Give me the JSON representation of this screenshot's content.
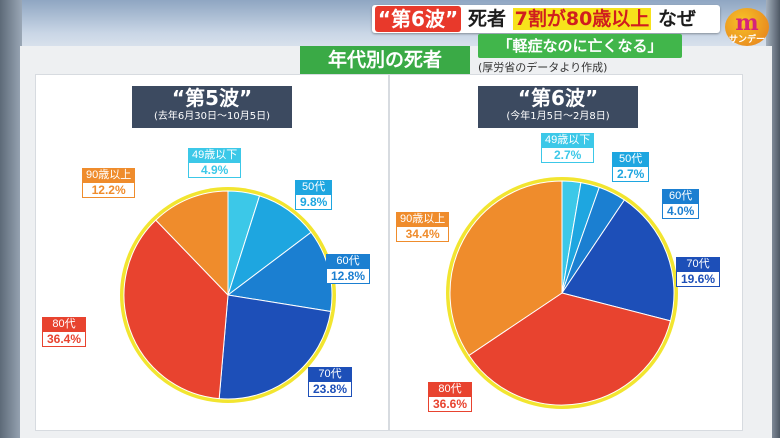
{
  "header": {
    "tag": "“第6波”",
    "headline_pre": "死者",
    "headline_hl": "7割が80歳以上",
    "headline_post": "なぜ",
    "subheadline": "「軽症なのに亡くなる」",
    "logo_mark": "m",
    "logo_text": "サンデー",
    "section_title": "年代別の死者",
    "source": "(厚労省のデータより作成)"
  },
  "colors": {
    "49歳以下": "#3cc8e8",
    "50代": "#1ea6e0",
    "60代": "#1b7fd1",
    "70代": "#1d4fb8",
    "80代": "#e8432f",
    "90歳以上": "#ef8c2c",
    "rim": "#f2e530"
  },
  "chart_data": [
    {
      "type": "pie",
      "title": "“第5波”",
      "subtitle": "(去年6月30日〜10月5日)",
      "labels": [
        "49歳以下",
        "50代",
        "60代",
        "70代",
        "80代",
        "90歳以上"
      ],
      "values": [
        4.9,
        9.8,
        12.8,
        23.8,
        36.4,
        12.2
      ],
      "value_text": [
        "4.9%",
        "9.8%",
        "12.8%",
        "23.8%",
        "36.4%",
        "12.2%"
      ]
    },
    {
      "type": "pie",
      "title": "“第6波”",
      "subtitle": "(今年1月5日〜2月8日)",
      "labels": [
        "49歳以下",
        "50代",
        "60代",
        "70代",
        "80代",
        "90歳以上"
      ],
      "values": [
        2.7,
        2.7,
        4.0,
        19.6,
        36.6,
        34.4
      ],
      "value_text": [
        "2.7%",
        "2.7%",
        "4.0%",
        "19.6%",
        "36.6%",
        "34.4%"
      ]
    }
  ]
}
